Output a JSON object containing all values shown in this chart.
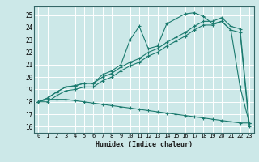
{
  "title": "",
  "xlabel": "Humidex (Indice chaleur)",
  "ylabel": "",
  "bg_color": "#cce8e8",
  "grid_color": "#ffffff",
  "line_color": "#1a7a6e",
  "xlim": [
    -0.5,
    23.5
  ],
  "ylim": [
    15.5,
    25.7
  ],
  "yticks": [
    16,
    17,
    18,
    19,
    20,
    21,
    22,
    23,
    24,
    25
  ],
  "xticks": [
    0,
    1,
    2,
    3,
    4,
    5,
    6,
    7,
    8,
    9,
    10,
    11,
    12,
    13,
    14,
    15,
    16,
    17,
    18,
    19,
    20,
    21,
    22,
    23
  ],
  "series": [
    [
      18.0,
      18.3,
      18.8,
      19.2,
      19.3,
      19.5,
      19.5,
      20.2,
      20.5,
      21.0,
      23.0,
      24.1,
      22.3,
      22.5,
      24.3,
      24.7,
      25.1,
      25.2,
      24.9,
      24.3,
      24.5,
      23.8,
      19.2,
      16.3
    ],
    [
      18.0,
      18.3,
      18.8,
      19.2,
      19.3,
      19.5,
      19.5,
      20.0,
      20.3,
      20.8,
      21.2,
      21.5,
      22.0,
      22.3,
      22.8,
      23.2,
      23.6,
      24.1,
      24.5,
      24.5,
      24.8,
      24.1,
      23.9,
      16.3
    ],
    [
      18.0,
      18.0,
      18.5,
      18.9,
      19.0,
      19.2,
      19.2,
      19.7,
      20.0,
      20.5,
      20.9,
      21.2,
      21.7,
      22.0,
      22.5,
      22.9,
      23.3,
      23.8,
      24.2,
      24.2,
      24.5,
      23.8,
      23.6,
      16.0
    ],
    [
      18.0,
      18.2,
      18.2,
      18.2,
      18.1,
      18.0,
      17.9,
      17.8,
      17.7,
      17.6,
      17.5,
      17.4,
      17.3,
      17.2,
      17.1,
      17.0,
      16.9,
      16.8,
      16.7,
      16.6,
      16.5,
      16.4,
      16.3,
      16.3
    ]
  ]
}
